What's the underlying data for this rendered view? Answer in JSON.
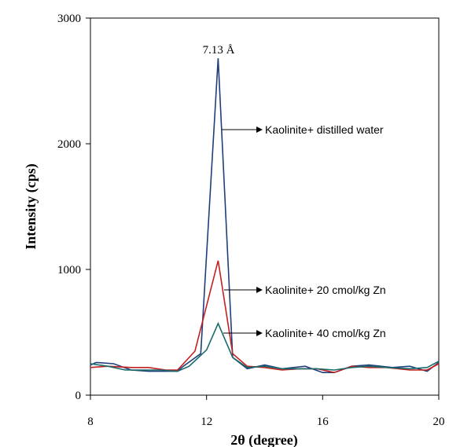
{
  "chart_data": {
    "type": "line",
    "xlabel": "2θ (degree)",
    "ylabel": "Intensity (cps)",
    "xlim": [
      8,
      20
    ],
    "ylim": [
      0,
      3000
    ],
    "xticks": [
      8,
      12,
      16,
      20
    ],
    "yticks": [
      0,
      1000,
      2000,
      3000
    ],
    "grid": false,
    "legend": "none",
    "series": [
      {
        "name": "Kaolinite+ distilled water",
        "color": "#1f3f7a",
        "x": [
          8.0,
          8.2,
          8.8,
          9.4,
          10.0,
          10.6,
          11.0,
          11.2,
          11.8,
          12.4,
          12.9,
          13.4,
          14.0,
          14.6,
          15.0,
          15.4,
          16.0,
          16.4,
          17.0,
          17.6,
          18.0,
          18.4,
          19.0,
          19.6,
          20.0
        ],
        "y": [
          240,
          260,
          250,
          200,
          190,
          190,
          190,
          230,
          330,
          2680,
          300,
          210,
          240,
          210,
          220,
          230,
          180,
          180,
          230,
          240,
          230,
          220,
          230,
          190,
          260
        ]
      },
      {
        "name": "Kaolinite+ 20 cmol/kg Zn",
        "color": "#c42020",
        "x": [
          8.0,
          8.6,
          9.4,
          10.0,
          10.6,
          11.0,
          11.6,
          12.4,
          12.9,
          13.4,
          14.0,
          14.6,
          15.2,
          15.8,
          16.4,
          17.0,
          17.6,
          18.2,
          19.0,
          19.6,
          20.0
        ],
        "y": [
          220,
          230,
          220,
          220,
          200,
          200,
          350,
          1070,
          330,
          230,
          220,
          200,
          210,
          210,
          180,
          230,
          220,
          220,
          200,
          200,
          250
        ]
      },
      {
        "name": "Kaolinite+ 40 cmol/kg Zn",
        "color": "#1a6b6b",
        "x": [
          8.0,
          8.6,
          9.2,
          9.8,
          10.4,
          11.0,
          11.4,
          12.0,
          12.4,
          12.9,
          13.4,
          14.0,
          14.6,
          15.2,
          15.8,
          16.4,
          17.0,
          17.6,
          18.2,
          19.0,
          19.6,
          20.0
        ],
        "y": [
          250,
          230,
          200,
          200,
          200,
          190,
          230,
          360,
          570,
          300,
          220,
          230,
          210,
          210,
          210,
          200,
          220,
          230,
          220,
          210,
          220,
          270
        ]
      }
    ],
    "annotations": {
      "peak_label": "7.13 Å",
      "series_notes": [
        "Kaolinite+ distilled water",
        "Kaolinite+ 20 cmol/kg Zn",
        "Kaolinite+ 40 cmol/kg Zn"
      ]
    }
  }
}
